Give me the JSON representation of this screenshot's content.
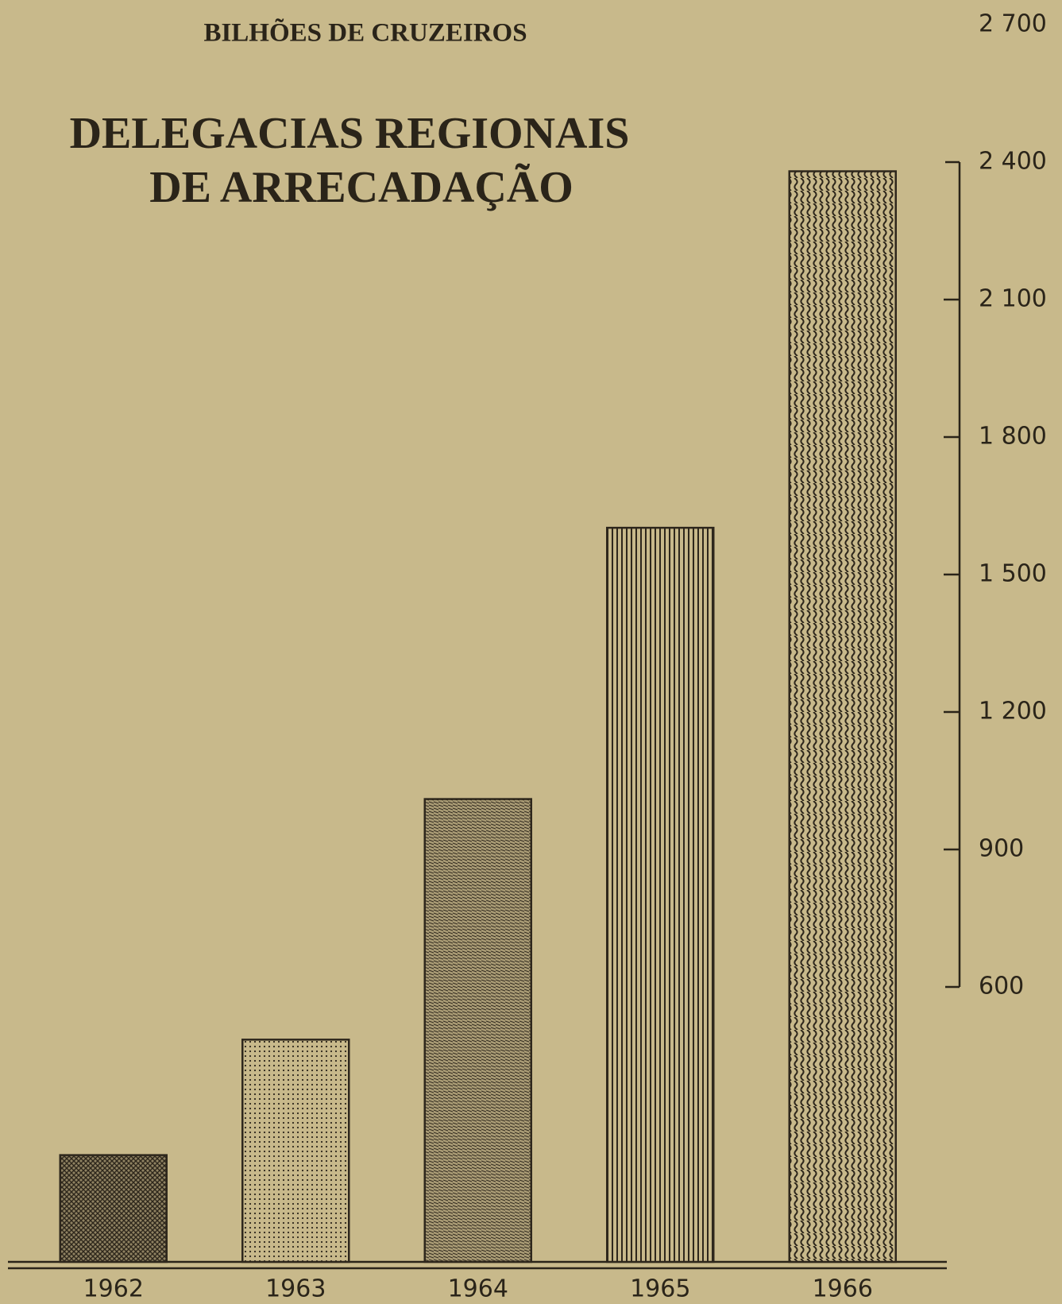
{
  "chart_data": {
    "type": "bar",
    "subtitle": "BILHÕES DE CRUZEIROS",
    "title": [
      "DELEGACIAS REGIONAIS",
      "DE ARRECADAÇÃO"
    ],
    "categories": [
      "1962",
      "1963",
      "1964",
      "1965",
      "1966"
    ],
    "values": [
      233,
      485,
      1010,
      1602,
      2380
    ],
    "color": "#2e271c",
    "ylim": [
      0,
      2700
    ],
    "yticks": [
      600,
      900,
      {
        "value": 1200,
        "label": "1 200"
      },
      {
        "value": 1500,
        "label": "1 500"
      },
      {
        "value": 1800,
        "label": "1 800"
      },
      {
        "value": 2100,
        "label": "2 100"
      },
      {
        "value": 2400,
        "label": "2 400"
      },
      {
        "value": 2700,
        "label": "2 700"
      }
    ],
    "grid": false
  }
}
